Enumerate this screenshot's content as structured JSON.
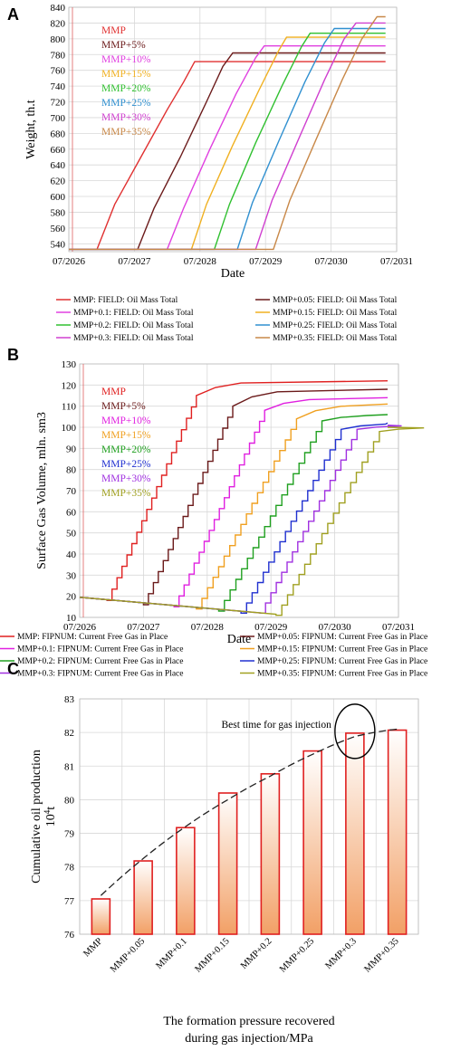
{
  "chart_data": [
    {
      "panel": "A",
      "type": "line",
      "xlabel": "Date",
      "ylabel": "Weight, th.t",
      "x_ticks": [
        "07/2026",
        "07/2027",
        "07/2028",
        "07/2029",
        "07/2030",
        "07/2031"
      ],
      "xlim": [
        2026.5,
        2031.5
      ],
      "ylim": [
        530,
        840
      ],
      "y_ticks": [
        540,
        560,
        580,
        600,
        620,
        640,
        660,
        680,
        700,
        720,
        740,
        760,
        780,
        800,
        820,
        840
      ],
      "grid": true,
      "inline_labels": [
        "MMP",
        "MMP+5%",
        "MMP+10%",
        "MMP+15%",
        "MMP+20%",
        "MMP+25%",
        "MMP+30%",
        "MMP+35%"
      ],
      "series": [
        {
          "name": "MMP: FIELD: Oil Mass Total",
          "color": "#e03030",
          "points": [
            [
              2026.5,
              533
            ],
            [
              2026.93,
              533
            ],
            [
              2027.2,
              590
            ],
            [
              2027.6,
              650
            ],
            [
              2028.0,
              710
            ],
            [
              2028.25,
              745
            ],
            [
              2028.42,
              771
            ],
            [
              2031.33,
              771
            ]
          ]
        },
        {
          "name": "MMP+0.05: FIELD: Oil Mass Total",
          "color": "#6b1a1a",
          "points": [
            [
              2026.5,
              533
            ],
            [
              2027.55,
              533
            ],
            [
              2027.8,
              585
            ],
            [
              2028.2,
              650
            ],
            [
              2028.6,
              720
            ],
            [
              2028.85,
              765
            ],
            [
              2029.0,
              782
            ],
            [
              2031.33,
              782
            ]
          ]
        },
        {
          "name": "MMP+0.1: FIELD: Oil Mass Total",
          "color": "#e040e0",
          "points": [
            [
              2026.5,
              533
            ],
            [
              2028.0,
              533
            ],
            [
              2028.25,
              585
            ],
            [
              2028.65,
              660
            ],
            [
              2029.05,
              730
            ],
            [
              2029.35,
              776
            ],
            [
              2029.48,
              791
            ],
            [
              2031.33,
              791
            ]
          ]
        },
        {
          "name": "MMP+0.15: FIELD: Oil Mass Total",
          "color": "#f0b020",
          "points": [
            [
              2026.5,
              533
            ],
            [
              2028.37,
              533
            ],
            [
              2028.6,
              590
            ],
            [
              2029.0,
              665
            ],
            [
              2029.4,
              735
            ],
            [
              2029.7,
              785
            ],
            [
              2029.82,
              802
            ],
            [
              2031.33,
              802
            ]
          ]
        },
        {
          "name": "MMP+0.2: FIELD: Oil Mass Total",
          "color": "#30c030",
          "points": [
            [
              2026.5,
              533
            ],
            [
              2028.72,
              533
            ],
            [
              2028.95,
              590
            ],
            [
              2029.35,
              668
            ],
            [
              2029.75,
              740
            ],
            [
              2030.05,
              790
            ],
            [
              2030.18,
              807
            ],
            [
              2031.33,
              807
            ]
          ]
        },
        {
          "name": "MMP+0.25: FIELD: Oil Mass Total",
          "color": "#3090d0",
          "points": [
            [
              2026.5,
              533
            ],
            [
              2029.07,
              533
            ],
            [
              2029.3,
              592
            ],
            [
              2029.7,
              670
            ],
            [
              2030.1,
              745
            ],
            [
              2030.4,
              795
            ],
            [
              2030.55,
              813
            ],
            [
              2031.33,
              813
            ]
          ]
        },
        {
          "name": "MMP+0.3: FIELD: Oil Mass Total",
          "color": "#d040d0",
          "points": [
            [
              2026.5,
              533
            ],
            [
              2029.35,
              533
            ],
            [
              2029.6,
              595
            ],
            [
              2030.0,
              672
            ],
            [
              2030.4,
              748
            ],
            [
              2030.7,
              800
            ],
            [
              2030.88,
              820
            ],
            [
              2031.33,
              820
            ]
          ]
        },
        {
          "name": "MMP+0.35: FIELD: Oil Mass Total",
          "color": "#c88848",
          "points": [
            [
              2026.5,
              533
            ],
            [
              2029.62,
              533
            ],
            [
              2029.87,
              595
            ],
            [
              2030.27,
              672
            ],
            [
              2030.67,
              748
            ],
            [
              2030.97,
              800
            ],
            [
              2031.2,
              828
            ],
            [
              2031.33,
              828
            ]
          ]
        }
      ]
    },
    {
      "panel": "B",
      "type": "line",
      "xlabel": "Date",
      "ylabel": "Surface Gas Volume, mln. sm3",
      "x_ticks": [
        "07/2026",
        "07/2027",
        "07/2028",
        "07/2029",
        "07/2030",
        "07/2031"
      ],
      "xlim": [
        2026.5,
        2031.5
      ],
      "ylim": [
        10,
        130
      ],
      "y_ticks": [
        10,
        20,
        30,
        40,
        50,
        60,
        70,
        80,
        90,
        100,
        110,
        120,
        130
      ],
      "grid": true,
      "inline_labels": [
        "MMP",
        "MMP+5%",
        "MMP+10%",
        "MMP+15%",
        "MMP+20%",
        "MMP+25%",
        "MMP+30%",
        "MMP+35%"
      ],
      "series": [
        {
          "name": "MMP: FIPNUM: Current Free Gas in Place",
          "color": "#e02020",
          "start": 2026.93,
          "end": 2028.33,
          "y_start": 18,
          "y_end": 115,
          "y_final": 122
        },
        {
          "name": "MMP+0.05: FIPNUM: Current Free Gas in Place",
          "color": "#6b1a1a",
          "start": 2027.5,
          "end": 2028.9,
          "y_start": 16,
          "y_end": 110,
          "y_final": 118
        },
        {
          "name": "MMP+0.1: FIPNUM: Current Free Gas in Place",
          "color": "#e020e0",
          "start": 2027.98,
          "end": 2029.4,
          "y_start": 15,
          "y_end": 108,
          "y_final": 114
        },
        {
          "name": "MMP+0.15: FIPNUM: Current Free Gas in Place",
          "color": "#f0a020",
          "start": 2028.33,
          "end": 2029.9,
          "y_start": 14,
          "y_end": 104,
          "y_final": 111
        },
        {
          "name": "MMP+0.2: FIPNUM: Current Free Gas in Place",
          "color": "#20a020",
          "start": 2028.68,
          "end": 2030.3,
          "y_start": 13,
          "y_end": 103,
          "y_final": 106
        },
        {
          "name": "MMP+0.25: FIPNUM: Current Free Gas in Place",
          "color": "#2030d0",
          "start": 2029.03,
          "end": 2030.6,
          "y_start": 12,
          "y_end": 99,
          "y_final": 102
        },
        {
          "name": "MMP+0.3: FIPNUM: Current Free Gas in Place",
          "color": "#a030e0",
          "start": 2029.33,
          "end": 2030.85,
          "y_start": 12,
          "y_end": 99,
          "y_final": 101
        },
        {
          "name": "MMP+0.35: FIPNUM: Current Free Gas in Place",
          "color": "#a0a020",
          "start": 2029.58,
          "end": 2031.2,
          "y_start": 11,
          "y_end": 98,
          "y_final": 100
        }
      ],
      "shared_initial": {
        "x0": 2026.5,
        "y0": 19.5,
        "y_decline_per_year": 2.6
      }
    },
    {
      "panel": "C",
      "type": "bar",
      "categories": [
        "MMP",
        "MMP+0.05",
        "MMP+0.1",
        "MMP+0.15",
        "MMP+0.2",
        "MMP+0.25",
        "MMP+0.3",
        "MMP+0.35"
      ],
      "values": [
        77.05,
        78.18,
        79.17,
        80.2,
        80.77,
        81.45,
        81.98,
        82.07
      ],
      "trend": [
        77.15,
        78.25,
        79.2,
        80.0,
        80.7,
        81.35,
        81.88,
        82.1
      ],
      "ylim": [
        76,
        83
      ],
      "y_ticks": [
        76,
        77,
        78,
        79,
        80,
        81,
        82,
        83
      ],
      "ylabel_line1": "Cumulative oil production",
      "ylabel_line2_base": "10",
      "ylabel_line2_sup": "4",
      "ylabel_line2_unit": "t",
      "xlabel_line1": "The formation pressure recovered",
      "xlabel_line2": "during gas injection/MPa",
      "annotation": "Best time for gas injection",
      "highlight_index": 6,
      "grid": true
    }
  ],
  "panels": {
    "a_label": "A",
    "b_label": "B",
    "c_label": "C"
  },
  "colors": {
    "bar_edge": "#e02020",
    "bar_top": "#ffffff",
    "bar_bottom": "#f2a066"
  }
}
